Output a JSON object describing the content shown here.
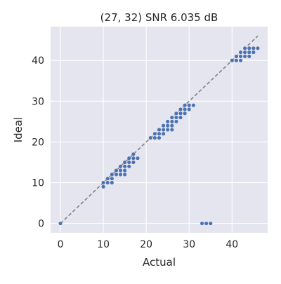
{
  "chart_data": {
    "type": "scatter",
    "title": "(27, 32) SNR 6.035 dB",
    "xlabel": "Actual",
    "ylabel": "Ideal",
    "xlim": [
      -2.3,
      48.3
    ],
    "ylim": [
      -2.3,
      48.3
    ],
    "xticks": [
      0,
      10,
      20,
      30,
      40
    ],
    "yticks": [
      0,
      10,
      20,
      30,
      40
    ],
    "grid": true,
    "background": "#e5e5f0",
    "grid_color": "#ffffff",
    "marker_color": "#4c72b0",
    "reference_line": {
      "from": [
        0,
        0
      ],
      "to": [
        46,
        46
      ],
      "color": "#808080",
      "style": "dashed"
    },
    "series": [
      {
        "points": [
          [
            0,
            0
          ],
          [
            10,
            9
          ],
          [
            10,
            10
          ],
          [
            11,
            10
          ],
          [
            11,
            11
          ],
          [
            12,
            10
          ],
          [
            12,
            11
          ],
          [
            12,
            12
          ],
          [
            13,
            12
          ],
          [
            13,
            13
          ],
          [
            14,
            12
          ],
          [
            14,
            13
          ],
          [
            14,
            14
          ],
          [
            15,
            12
          ],
          [
            15,
            13
          ],
          [
            15,
            14
          ],
          [
            15,
            15
          ],
          [
            16,
            14
          ],
          [
            16,
            15
          ],
          [
            16,
            16
          ],
          [
            17,
            15
          ],
          [
            17,
            16
          ],
          [
            17,
            17
          ],
          [
            18,
            16
          ],
          [
            21,
            21
          ],
          [
            22,
            21
          ],
          [
            22,
            22
          ],
          [
            23,
            21
          ],
          [
            23,
            22
          ],
          [
            23,
            23
          ],
          [
            24,
            22
          ],
          [
            24,
            23
          ],
          [
            24,
            24
          ],
          [
            25,
            23
          ],
          [
            25,
            24
          ],
          [
            25,
            25
          ],
          [
            26,
            23
          ],
          [
            26,
            24
          ],
          [
            26,
            25
          ],
          [
            26,
            26
          ],
          [
            27,
            25
          ],
          [
            27,
            26
          ],
          [
            27,
            27
          ],
          [
            28,
            26
          ],
          [
            28,
            27
          ],
          [
            28,
            28
          ],
          [
            29,
            27
          ],
          [
            29,
            28
          ],
          [
            29,
            29
          ],
          [
            30,
            28
          ],
          [
            30,
            29
          ],
          [
            31,
            29
          ],
          [
            33,
            0
          ],
          [
            34,
            0
          ],
          [
            35,
            0
          ],
          [
            40,
            40
          ],
          [
            41,
            40
          ],
          [
            41,
            41
          ],
          [
            42,
            40
          ],
          [
            42,
            41
          ],
          [
            42,
            42
          ],
          [
            43,
            41
          ],
          [
            43,
            42
          ],
          [
            43,
            43
          ],
          [
            44,
            41
          ],
          [
            44,
            42
          ],
          [
            44,
            43
          ],
          [
            45,
            42
          ],
          [
            45,
            43
          ],
          [
            46,
            43
          ]
        ]
      }
    ]
  }
}
